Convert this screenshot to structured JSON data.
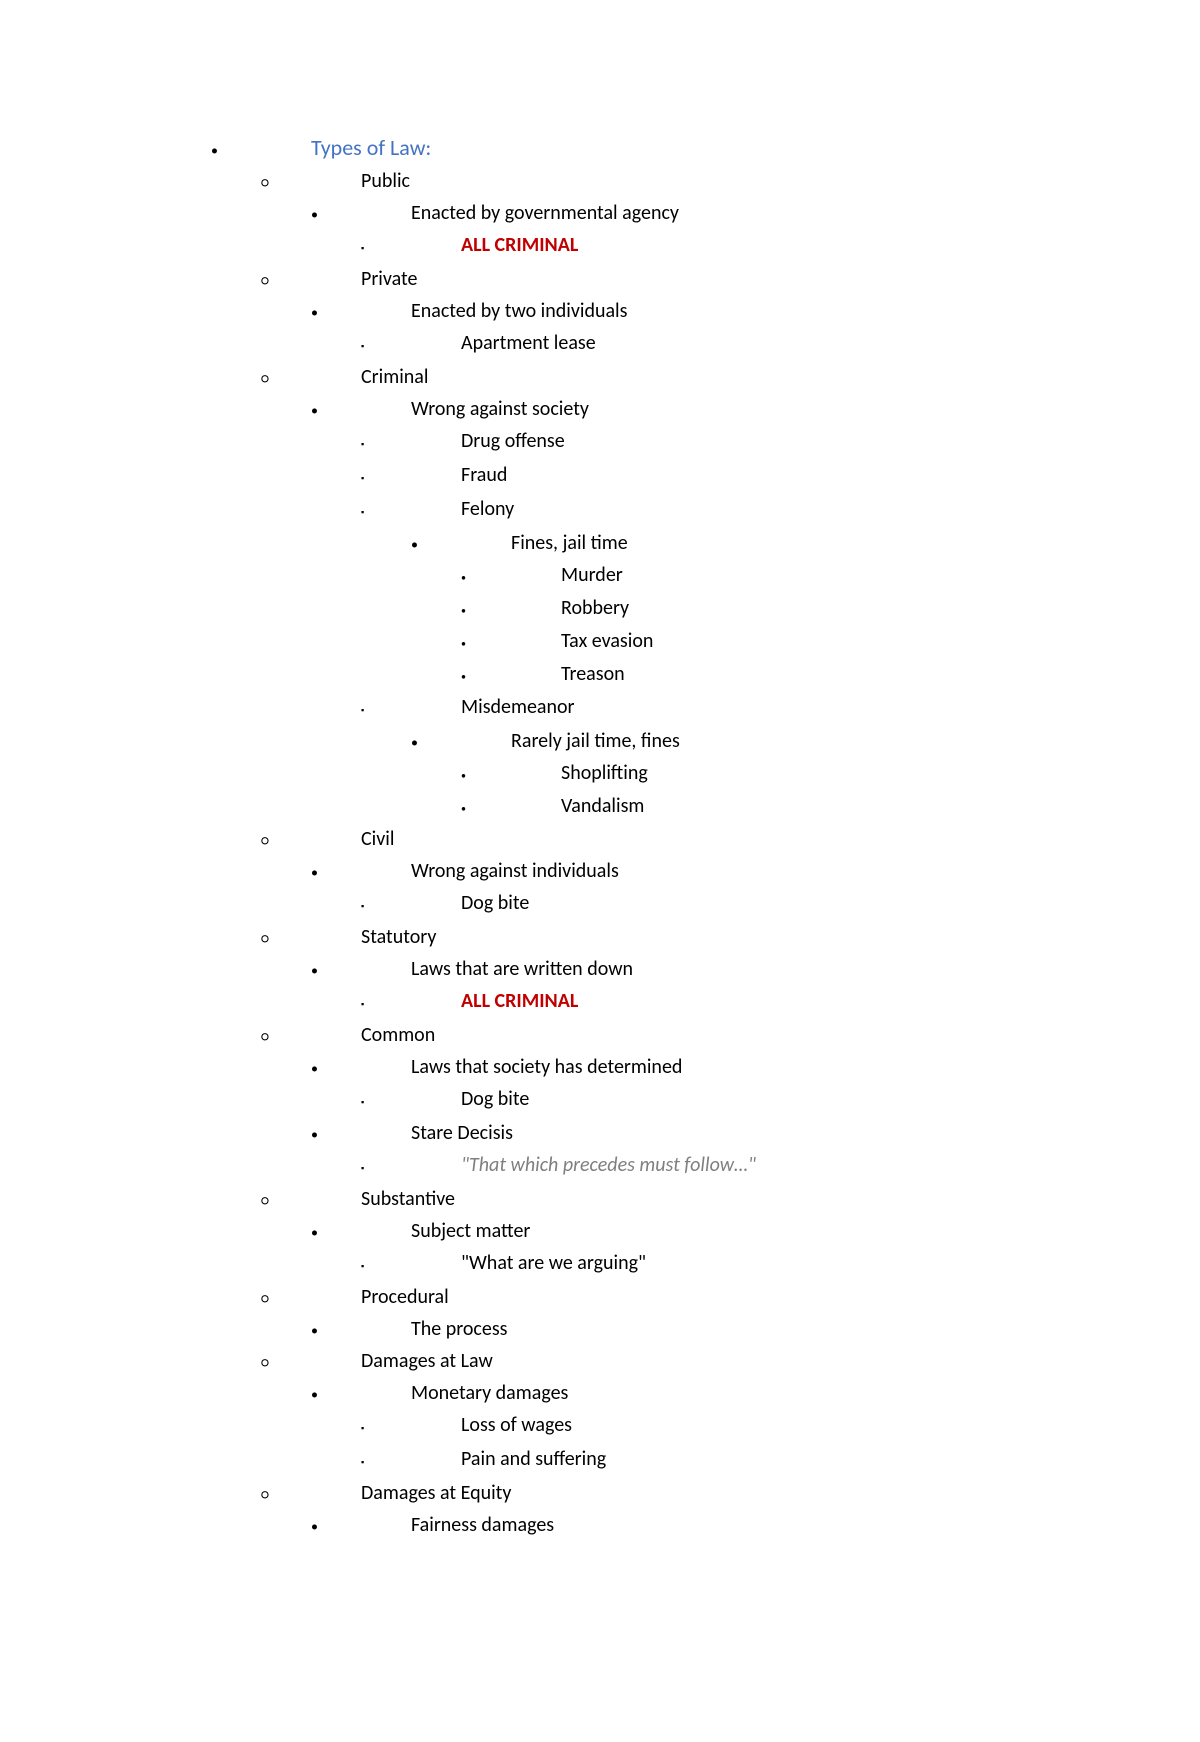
{
  "doc": {
    "heading_color": "#4472c4",
    "emphasis_color": "#c00000",
    "muted_color": "#7f7f7f",
    "text_color": "#000000",
    "background_color": "#ffffff",
    "font_family": "Calibri",
    "base_font_size_pt": 15,
    "heading_font_size_pt": 17,
    "bullet_glyphs": {
      "disc": "•",
      "circ": "○",
      "square": "▪",
      "disc_small": "•"
    },
    "title": "Types of Law:"
  },
  "outline": [
    {
      "level": 0,
      "bullet": "disc",
      "text": "Types of Law:",
      "style": "heading"
    },
    {
      "level": 1,
      "bullet": "circ",
      "text": "Public"
    },
    {
      "level": 2,
      "bullet": "disc",
      "text": "Enacted by governmental agency"
    },
    {
      "level": 3,
      "bullet": "square",
      "text": "ALL CRIMINAL",
      "style": "emph-red"
    },
    {
      "level": 1,
      "bullet": "circ",
      "text": "Private"
    },
    {
      "level": 2,
      "bullet": "disc",
      "text": "Enacted by two individuals"
    },
    {
      "level": 3,
      "bullet": "square",
      "text": "Apartment lease"
    },
    {
      "level": 1,
      "bullet": "circ",
      "text": "Criminal"
    },
    {
      "level": 2,
      "bullet": "disc",
      "text": "Wrong against society"
    },
    {
      "level": 3,
      "bullet": "square",
      "text": "Drug offense"
    },
    {
      "level": 3,
      "bullet": "square",
      "text": "Fraud"
    },
    {
      "level": 3,
      "bullet": "square",
      "text": "Felony"
    },
    {
      "level": 4,
      "bullet": "disc",
      "text": "Fines, jail time"
    },
    {
      "level": 5,
      "bullet": "disc_small",
      "text": "Murder"
    },
    {
      "level": 5,
      "bullet": "disc_small",
      "text": "Robbery"
    },
    {
      "level": 5,
      "bullet": "disc_small",
      "text": "Tax evasion"
    },
    {
      "level": 5,
      "bullet": "disc_small",
      "text": "Treason"
    },
    {
      "level": 3,
      "bullet": "square",
      "text": "Misdemeanor"
    },
    {
      "level": 4,
      "bullet": "disc",
      "text": "Rarely jail time, fines"
    },
    {
      "level": 5,
      "bullet": "disc_small",
      "text": "Shoplifting"
    },
    {
      "level": 5,
      "bullet": "disc_small",
      "text": "Vandalism"
    },
    {
      "level": 1,
      "bullet": "circ",
      "text": "Civil"
    },
    {
      "level": 2,
      "bullet": "disc",
      "text": "Wrong against individuals"
    },
    {
      "level": 3,
      "bullet": "square",
      "text": "Dog bite"
    },
    {
      "level": 1,
      "bullet": "circ",
      "text": "Statutory"
    },
    {
      "level": 2,
      "bullet": "disc",
      "text": "Laws that are written down"
    },
    {
      "level": 3,
      "bullet": "square",
      "text": "ALL CRIMINAL",
      "style": "emph-red"
    },
    {
      "level": 1,
      "bullet": "circ",
      "text": "Common"
    },
    {
      "level": 2,
      "bullet": "disc",
      "text": "Laws that society has determined"
    },
    {
      "level": 3,
      "bullet": "square",
      "text": "Dog bite"
    },
    {
      "level": 2,
      "bullet": "disc",
      "text": "Stare Decisis"
    },
    {
      "level": 3,
      "bullet": "square",
      "text": "\"That which precedes must follow…\"",
      "style": "italic-gray"
    },
    {
      "level": 1,
      "bullet": "circ",
      "text": "Substantive"
    },
    {
      "level": 2,
      "bullet": "disc",
      "text": "Subject matter"
    },
    {
      "level": 3,
      "bullet": "square",
      "text": "\"What are we arguing\""
    },
    {
      "level": 1,
      "bullet": "circ",
      "text": "Procedural"
    },
    {
      "level": 2,
      "bullet": "disc",
      "text": "The process"
    },
    {
      "level": 1,
      "bullet": "circ",
      "text": "Damages at Law"
    },
    {
      "level": 2,
      "bullet": "disc",
      "text": "Monetary damages"
    },
    {
      "level": 3,
      "bullet": "square",
      "text": "Loss of wages"
    },
    {
      "level": 3,
      "bullet": "square",
      "text": "Pain and suffering"
    },
    {
      "level": 1,
      "bullet": "circ",
      "text": "Damages at Equity"
    },
    {
      "level": 2,
      "bullet": "disc",
      "text": "Fairness damages"
    }
  ]
}
